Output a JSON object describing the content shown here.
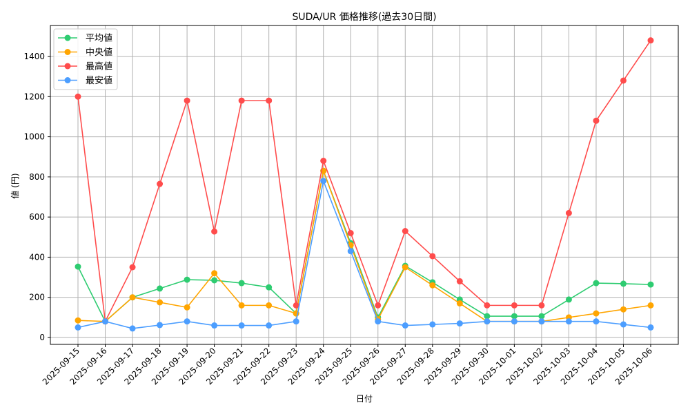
{
  "chart_data": {
    "type": "line",
    "title": "SUDA/UR 価格推移(過去30日間)",
    "xlabel": "日付",
    "ylabel": "値 (円)",
    "ylim": [
      -40,
      1550
    ],
    "yticks": [
      0,
      200,
      400,
      600,
      800,
      1000,
      1200,
      1400
    ],
    "grid": true,
    "legend_position": "top-left",
    "x": [
      "2025-09-15",
      "2025-09-16",
      "2025-09-17",
      "2025-09-18",
      "2025-09-19",
      "2025-09-20",
      "2025-09-21",
      "2025-09-22",
      "2025-09-23",
      "2025-09-24",
      "2025-09-25",
      "2025-09-26",
      "2025-09-27",
      "2025-09-28",
      "2025-09-29",
      "2025-09-30",
      "2025-10-01",
      "2025-10-02",
      "2025-10-03",
      "2025-10-04",
      "2025-10-05",
      "2025-10-06"
    ],
    "series": [
      {
        "name": "平均値",
        "color": "#2ecc71",
        "values": [
          353,
          80,
          200,
          244,
          288,
          285,
          271,
          250,
          120,
          830,
          470,
          100,
          357,
          275,
          189,
          106,
          106,
          106,
          189,
          271,
          268,
          264
        ]
      },
      {
        "name": "中央値",
        "color": "#ffa500",
        "values": [
          85,
          80,
          200,
          175,
          150,
          320,
          160,
          160,
          120,
          830,
          460,
          90,
          350,
          260,
          170,
          80,
          80,
          80,
          100,
          120,
          140,
          160
        ]
      },
      {
        "name": "最高値",
        "color": "#ff4c4c",
        "values": [
          1200,
          80,
          350,
          765,
          1180,
          528,
          1180,
          1180,
          160,
          880,
          520,
          160,
          530,
          405,
          280,
          160,
          160,
          160,
          620,
          1080,
          1280,
          1480
        ]
      },
      {
        "name": "最安値",
        "color": "#4c9eff",
        "values": [
          50,
          80,
          45,
          62,
          80,
          60,
          60,
          60,
          80,
          780,
          430,
          80,
          60,
          65,
          70,
          80,
          80,
          80,
          80,
          80,
          65,
          50
        ]
      }
    ]
  }
}
